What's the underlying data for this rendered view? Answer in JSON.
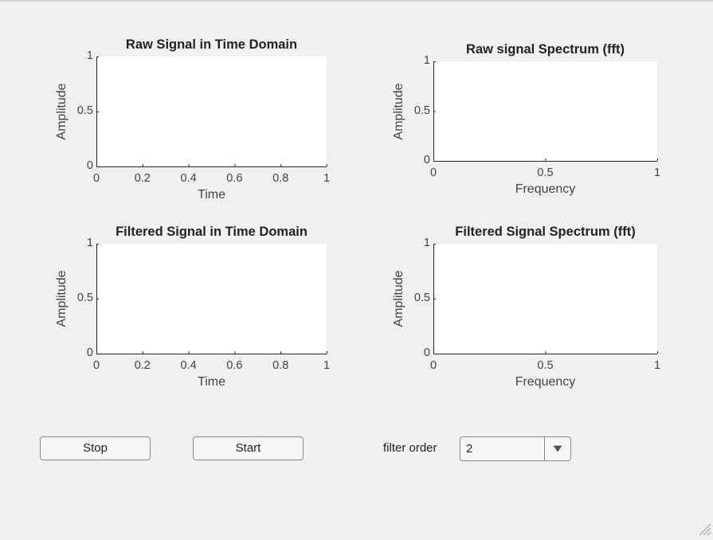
{
  "axes": [
    {
      "id": "raw-time",
      "title": "Raw Signal in Time Domain",
      "xlabel": "Time",
      "ylabel": "Amplitude",
      "xticks": [
        "0",
        "0.2",
        "0.4",
        "0.6",
        "0.8",
        "1"
      ],
      "yticks": [
        "0",
        "0.5",
        "1"
      ],
      "xlim": [
        0,
        1
      ],
      "ylim": [
        0,
        1
      ]
    },
    {
      "id": "raw-fft",
      "title": "Raw signal Spectrum (fft)",
      "xlabel": "Frequency",
      "ylabel": "Amplitude",
      "xticks": [
        "0",
        "0.5",
        "1"
      ],
      "yticks": [
        "0",
        "0.5",
        "1"
      ],
      "xlim": [
        0,
        1
      ],
      "ylim": [
        0,
        1
      ]
    },
    {
      "id": "filtered-time",
      "title": "Filtered Signal in Time Domain",
      "xlabel": "Time",
      "ylabel": "Amplitude",
      "xticks": [
        "0",
        "0.2",
        "0.4",
        "0.6",
        "0.8",
        "1"
      ],
      "yticks": [
        "0",
        "0.5",
        "1"
      ],
      "xlim": [
        0,
        1
      ],
      "ylim": [
        0,
        1
      ]
    },
    {
      "id": "filtered-fft",
      "title": "Filtered Signal Spectrum (fft)",
      "xlabel": "Frequency",
      "ylabel": "Amplitude",
      "xticks": [
        "0",
        "0.5",
        "1"
      ],
      "yticks": [
        "0",
        "0.5",
        "1"
      ],
      "xlim": [
        0,
        1
      ],
      "ylim": [
        0,
        1
      ]
    }
  ],
  "controls": {
    "stop_label": "Stop",
    "start_label": "Start",
    "filter_order_label": "filter order",
    "filter_order_value": "2"
  }
}
